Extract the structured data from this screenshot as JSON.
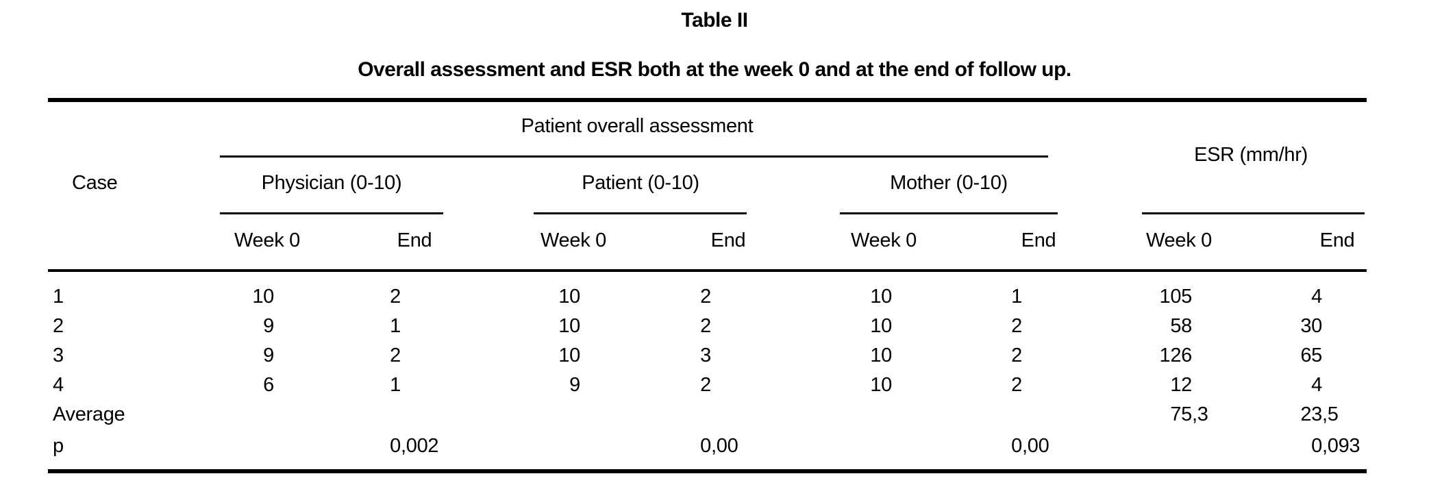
{
  "title": "Table II",
  "subtitle": "Overall assessment and ESR both at the week 0 and at the end of follow up.",
  "colors": {
    "background": "#ffffff",
    "text": "#000000",
    "rule": "#000000"
  },
  "table": {
    "case_header": "Case",
    "spanner_header": "Patient overall assessment",
    "esr_header": "ESR (mm/hr)",
    "subgroups": [
      {
        "key": "physician",
        "label": "Physician (0-10)"
      },
      {
        "key": "patient",
        "label": "Patient (0-10)"
      },
      {
        "key": "mother",
        "label": "Mother (0-10)"
      }
    ],
    "measure_columns": [
      {
        "key": "week0-physician",
        "label": "Week 0"
      },
      {
        "key": "end-physician",
        "label": "End"
      },
      {
        "key": "week0-patient",
        "label": "Week 0"
      },
      {
        "key": "end-patient",
        "label": "End"
      },
      {
        "key": "week0-mother",
        "label": "Week 0"
      },
      {
        "key": "end-mother",
        "label": "End"
      },
      {
        "key": "week0-esr",
        "label": "Week 0"
      },
      {
        "key": "end-esr",
        "label": "End"
      }
    ],
    "rows": [
      {
        "case": "1",
        "values": [
          "10",
          "2",
          "10",
          "2",
          "10",
          "1",
          "105",
          "4"
        ]
      },
      {
        "case": "2",
        "values": [
          "9",
          "1",
          "10",
          "2",
          "10",
          "2",
          "58",
          "30"
        ]
      },
      {
        "case": "3",
        "values": [
          "9",
          "2",
          "10",
          "3",
          "10",
          "2",
          "126",
          "65"
        ]
      },
      {
        "case": "4",
        "values": [
          "6",
          "1",
          "9",
          "2",
          "10",
          "2",
          "12",
          "4"
        ]
      },
      {
        "case": "Average",
        "values": [
          "",
          "",
          "",
          "",
          "",
          "",
          "75,3",
          "23,5"
        ]
      },
      {
        "case": "p",
        "values": [
          "",
          "0,002",
          "",
          "0,00",
          "",
          "0,00",
          "",
          "0,093"
        ]
      }
    ]
  },
  "chart_data": {
    "type": "table",
    "title": "Table II",
    "subtitle": "Overall assessment and ESR both at the week 0 and at the end of follow up.",
    "columns": [
      "Case",
      "Physician Week 0",
      "Physician End",
      "Patient Week 0",
      "Patient End",
      "Mother Week 0",
      "Mother End",
      "ESR Week 0",
      "ESR End"
    ],
    "rows": [
      [
        "1",
        10,
        2,
        10,
        2,
        10,
        1,
        105,
        4
      ],
      [
        "2",
        9,
        1,
        10,
        2,
        10,
        2,
        58,
        30
      ],
      [
        "3",
        9,
        2,
        10,
        3,
        10,
        2,
        126,
        65
      ],
      [
        "4",
        6,
        1,
        9,
        2,
        10,
        2,
        12,
        4
      ],
      [
        "Average",
        null,
        null,
        null,
        null,
        null,
        null,
        "75,3",
        "23,5"
      ],
      [
        "p",
        null,
        "0,002",
        null,
        "0,00",
        null,
        "0,00",
        null,
        "0,093"
      ]
    ]
  }
}
